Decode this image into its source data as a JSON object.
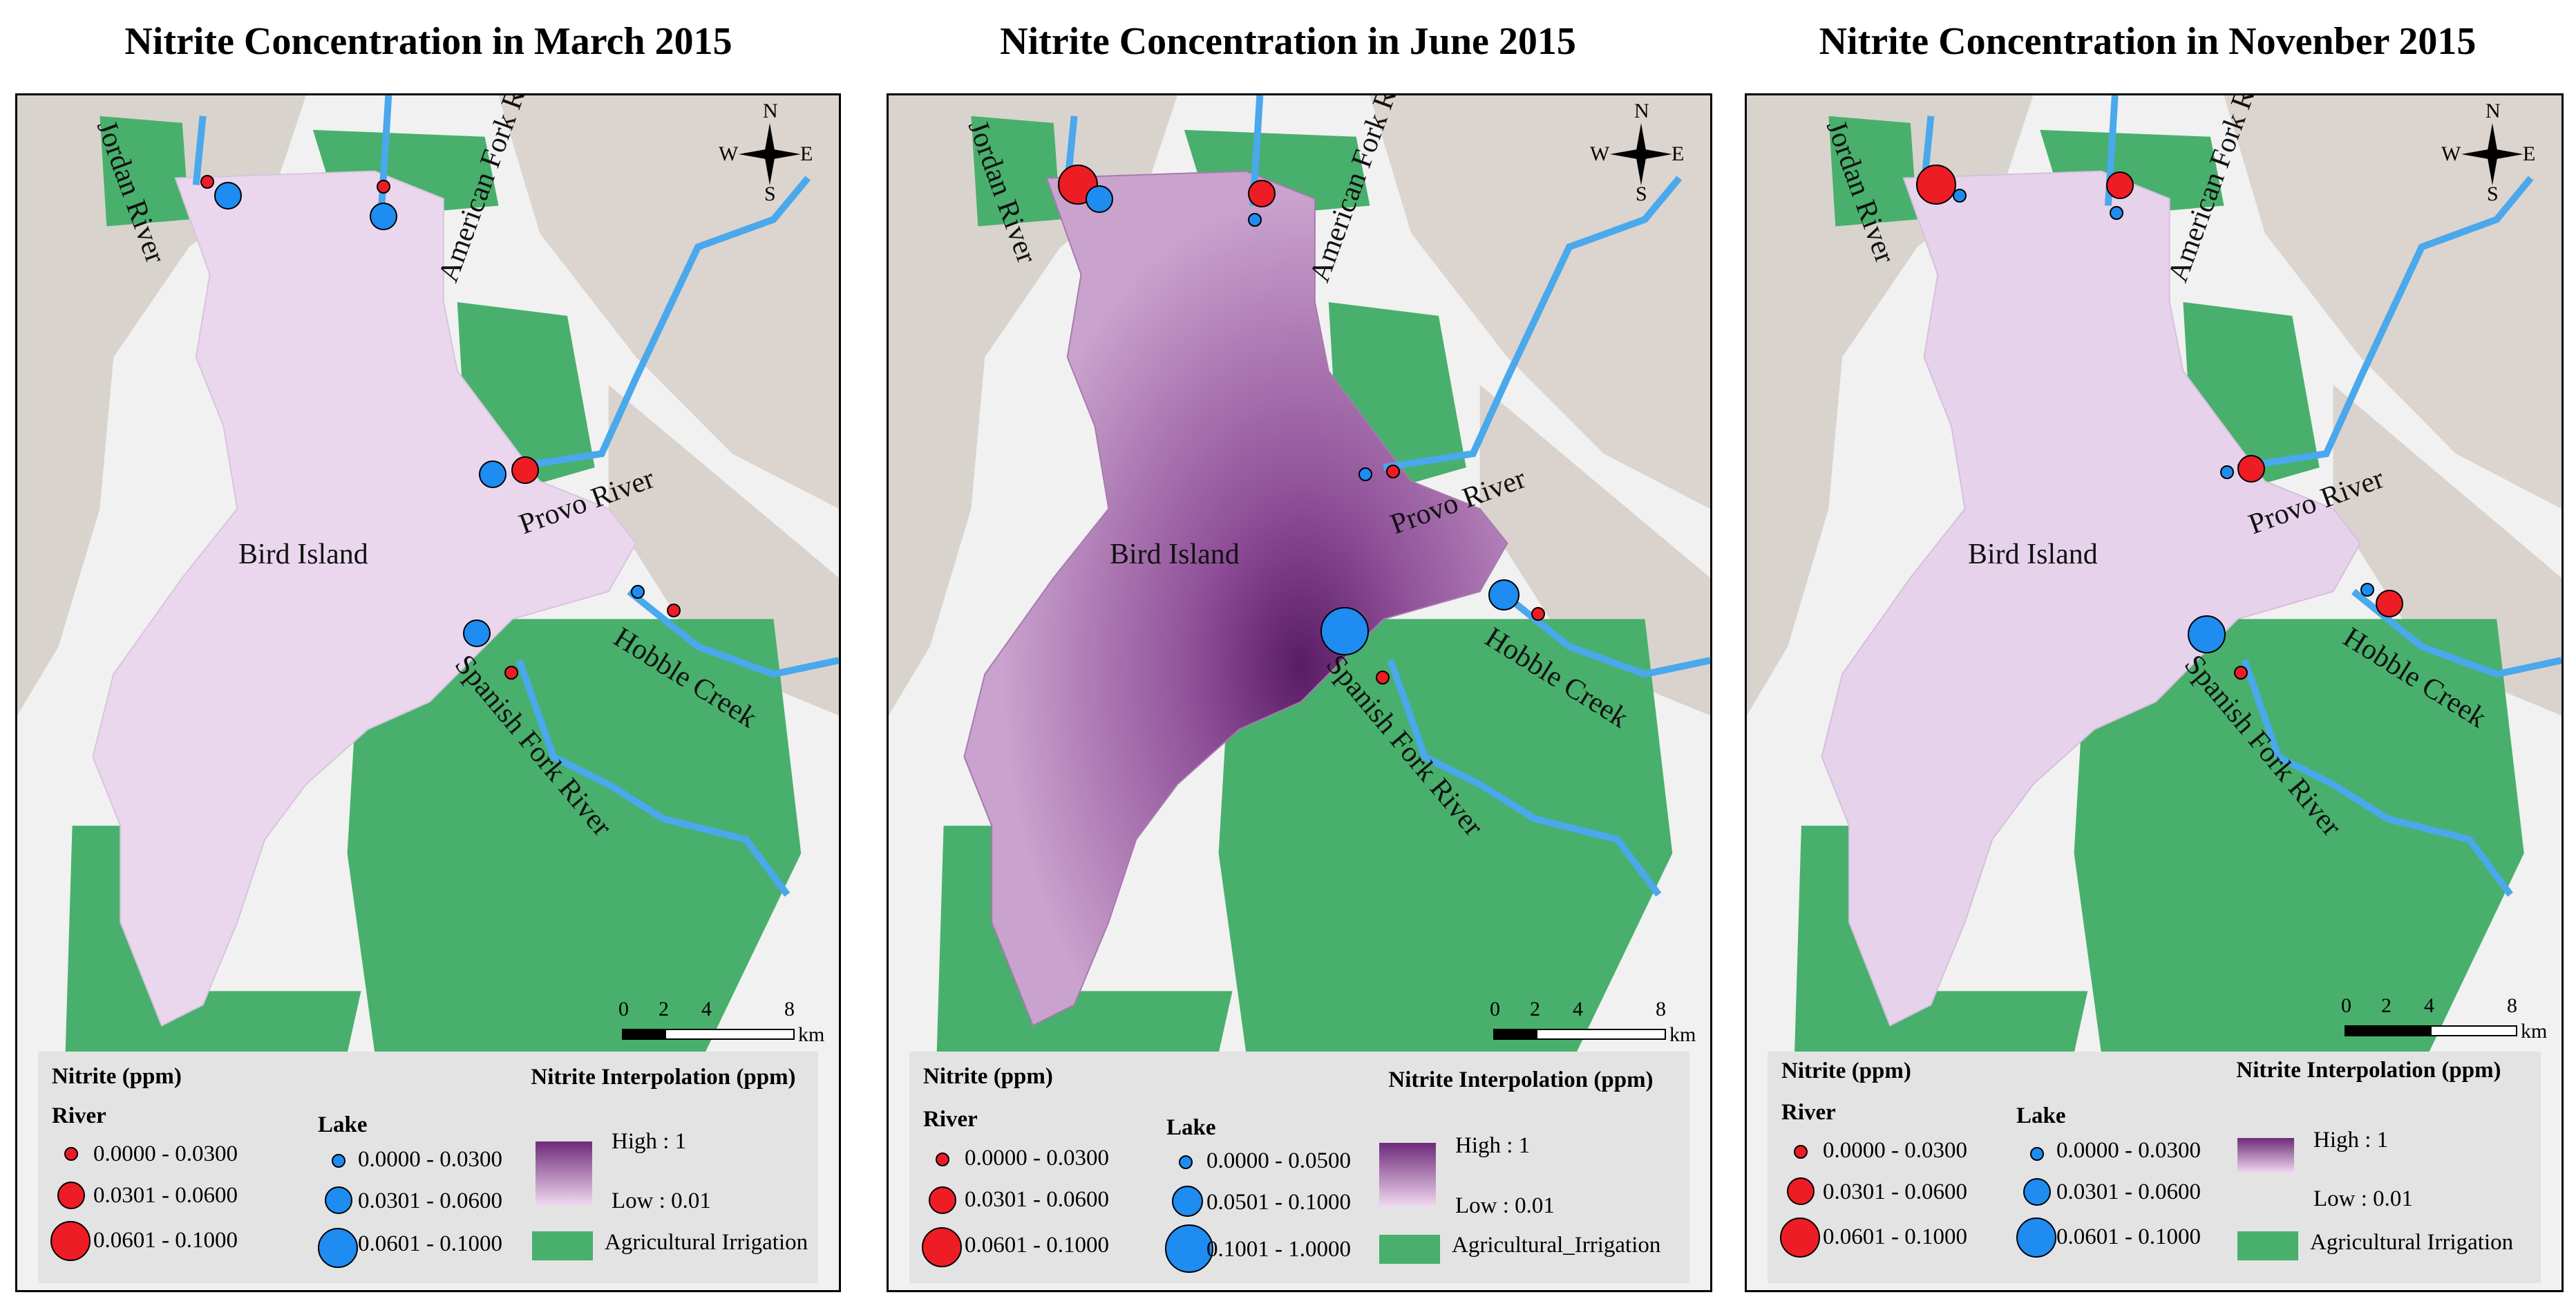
{
  "panels": [
    {
      "title": "Nitrite Concentration in March 2015",
      "labels": {
        "jordan": "Jordan River",
        "american": "American Fork River",
        "provo": "Provo River",
        "bird": "Bird Island",
        "hobble": "Hobble Creek",
        "spanish": "Spanish Fork River"
      },
      "scale": {
        "ticks": [
          "0",
          "2",
          "4",
          "8"
        ],
        "unit": "km"
      },
      "compass": {
        "n": "N",
        "s": "S",
        "e": "E",
        "w": "W"
      },
      "legend": {
        "nitrite_title": "Nitrite (ppm)",
        "river_title": "River",
        "river_classes": [
          "0.0000 - 0.0300",
          "0.0301 - 0.0600",
          "0.0601 - 0.1000"
        ],
        "lake_title": "Lake",
        "lake_classes": [
          "0.0000 - 0.0300",
          "0.0301 - 0.0600",
          "0.0601 - 0.1000"
        ],
        "interp_title": "Nitrite Interpolation (ppm)",
        "high": "High : 1",
        "low": "Low : 0.01",
        "agri": "Agricultural Irrigation"
      },
      "lake_color": "#ead7ee"
    },
    {
      "title": "Nitrite Concentration in June 2015",
      "labels": {
        "jordan": "Jordan River",
        "american": "American Fork River",
        "provo": "Provo River",
        "bird": "Bird Island",
        "hobble": "Hobble Creek",
        "spanish": "Spanish Fork River"
      },
      "scale": {
        "ticks": [
          "0",
          "2",
          "4",
          "8"
        ],
        "unit": "km"
      },
      "compass": {
        "n": "N",
        "s": "S",
        "e": "E",
        "w": "W"
      },
      "legend": {
        "nitrite_title": "Nitrite (ppm)",
        "river_title": "River",
        "river_classes": [
          "0.0000 - 0.0300",
          "0.0301 - 0.0600",
          "0.0601 - 0.1000"
        ],
        "lake_title": "Lake",
        "lake_classes": [
          "0.0000 - 0.0500",
          "0.0501 - 0.1000",
          "0.1001 - 1.0000"
        ],
        "interp_title": "Nitrite Interpolation (ppm)",
        "high": "High : 1",
        "low": "Low : 0.01",
        "agri": "Agricultural_Irrigation"
      },
      "lake_color": "#b27fb6"
    },
    {
      "title": "Nitrite Concentration in Novenber 2015",
      "labels": {
        "jordan": "Jordan River",
        "american": "American Fork River",
        "provo": "Provo River",
        "bird": "Bird Island",
        "hobble": "Hobble Creek",
        "spanish": "Spanish Fork River"
      },
      "scale": {
        "ticks": [
          "0",
          "2",
          "4",
          "8"
        ],
        "unit": "km"
      },
      "compass": {
        "n": "N",
        "s": "S",
        "e": "E",
        "w": "W"
      },
      "legend": {
        "nitrite_title": "Nitrite (ppm)",
        "river_title": "River",
        "river_classes": [
          "0.0000 - 0.0300",
          "0.0301 - 0.0600",
          "0.0601 - 0.1000"
        ],
        "lake_title": "Lake",
        "lake_classes": [
          "0.0000 - 0.0300",
          "0.0301 - 0.0600",
          "0.0601 - 0.1000"
        ],
        "interp_title": "Nitrite Interpolation (ppm)",
        "high": "High : 1",
        "low": "Low : 0.01",
        "agri": "Agricultural Irrigation"
      },
      "lake_color": "#e7d2ec"
    }
  ],
  "colors": {
    "river_points": "#ee1c24",
    "lake_points": "#1e8cf0",
    "agriculture": "#48b06c",
    "rivers": "#4aa8ec",
    "interp_high": "#6e2a79",
    "interp_low": "#f0d8f0"
  }
}
